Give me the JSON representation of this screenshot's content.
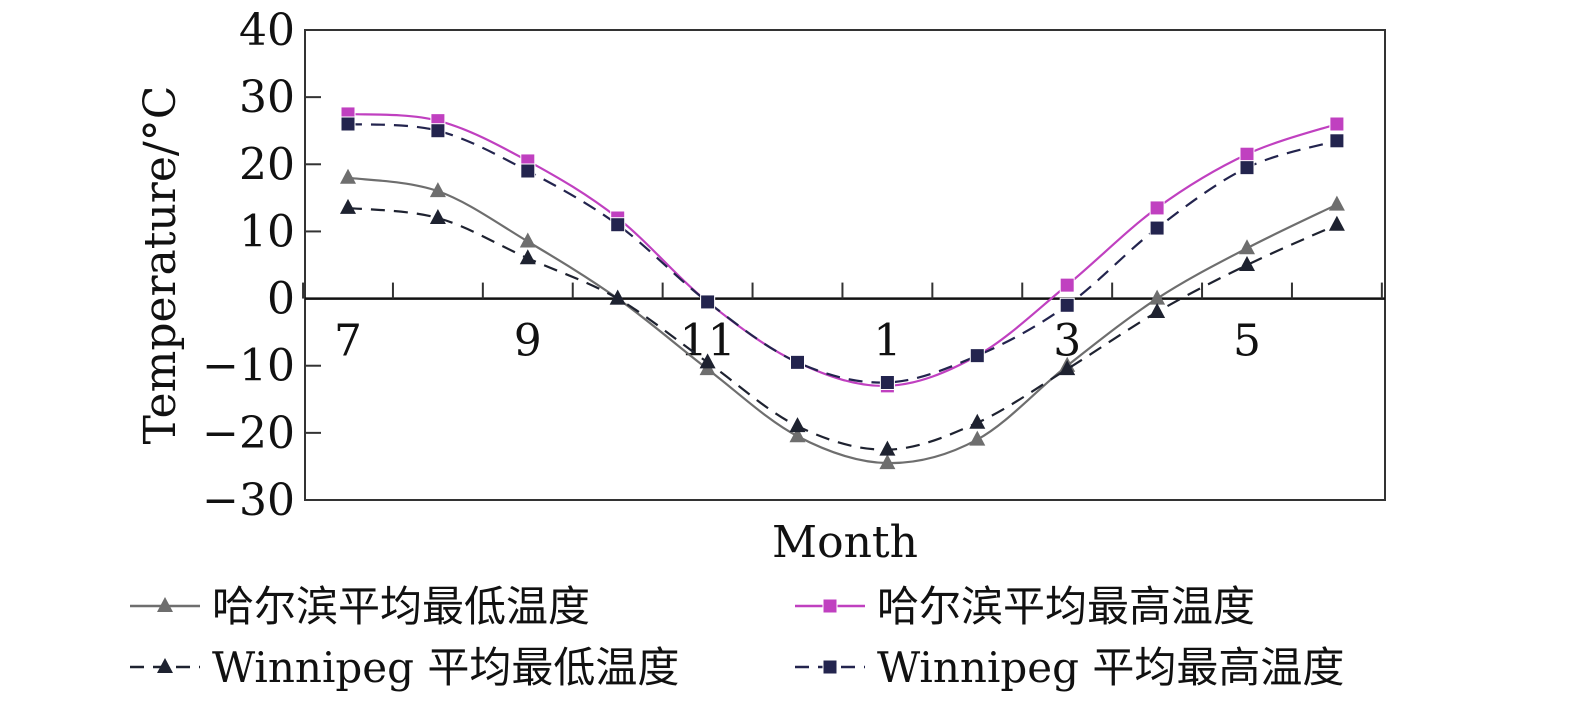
{
  "chart_data": {
    "type": "line",
    "xlabel": "Month",
    "ylabel": "Temperature/°C",
    "x": [
      7,
      8,
      9,
      10,
      11,
      12,
      1,
      2,
      3,
      4,
      5,
      6
    ],
    "x_tick_labels": [
      "7",
      "9",
      "11",
      "1",
      "3",
      "5"
    ],
    "x_tick_positions": [
      0,
      2,
      4,
      6,
      8,
      10
    ],
    "ylim": [
      -30,
      40
    ],
    "y_ticks": [
      -30,
      -20,
      -10,
      0,
      10,
      20,
      30,
      40
    ],
    "grid": false,
    "legend_position": "bottom",
    "series": [
      {
        "name": "哈尔滨平均最低温度",
        "color": "#6e6e6e",
        "marker": "triangle",
        "line_style": "solid",
        "values": [
          18,
          16,
          8.5,
          0,
          -10.5,
          -20.5,
          -24.5,
          -21,
          -10,
          0,
          7.5,
          14
        ]
      },
      {
        "name": "哈尔滨平均最高温度",
        "color": "#c040c0",
        "marker": "square",
        "line_style": "solid",
        "values": [
          27.5,
          26.5,
          20.5,
          12,
          -0.5,
          -9.5,
          -13,
          -8.5,
          2,
          13.5,
          21.5,
          26
        ]
      },
      {
        "name": "Winnipeg 平均最低温度",
        "color": "#1e2230",
        "marker": "triangle",
        "line_style": "dashed",
        "values": [
          13.5,
          12,
          6,
          0,
          -9.5,
          -19,
          -22.5,
          -18.5,
          -10.5,
          -2,
          5,
          11
        ]
      },
      {
        "name": "Winnipeg 平均最高温度",
        "color": "#23244e",
        "marker": "square",
        "line_style": "dashed",
        "values": [
          26,
          25,
          19,
          11,
          -0.5,
          -9.5,
          -12.5,
          -8.5,
          -1,
          10.5,
          19.5,
          23.5
        ]
      }
    ]
  }
}
